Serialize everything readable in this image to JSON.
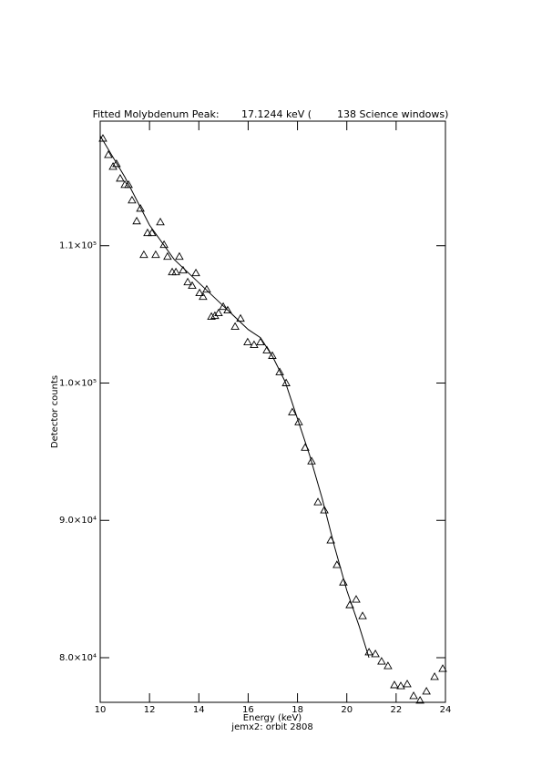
{
  "chart_data": {
    "type": "scatter",
    "title": "Fitted Molybdenum Peak:       17.1244 keV (        138 Science windows)",
    "x_label": "Energy (keV)",
    "y_label": "Detector counts",
    "subtitle": "jemx2: orbit 2808",
    "xlim": [
      10,
      24
    ],
    "xticks": [
      10,
      12,
      14,
      16,
      18,
      20,
      22,
      24
    ],
    "ylim": [
      76750,
      119070
    ],
    "yticks": [
      {
        "value": 80000,
        "label": "8.0×10⁴"
      },
      {
        "value": 90000,
        "label": "9.0×10⁴"
      },
      {
        "value": 100000,
        "label": "1.0×10⁵"
      },
      {
        "value": 110000,
        "label": "1.1×10⁵"
      }
    ],
    "color": "#000000",
    "series": [
      {
        "style": "marker",
        "x": [
          10.11,
          10.33,
          10.52,
          10.66,
          10.81,
          11.0,
          11.15,
          11.29,
          11.48,
          11.63,
          11.77,
          11.92,
          12.1,
          12.25,
          12.44,
          12.59,
          12.73,
          12.92,
          13.07,
          13.21,
          13.36,
          13.55,
          13.73,
          13.88,
          14.03,
          14.17,
          14.32,
          14.51,
          14.65,
          14.8,
          14.99,
          15.17,
          15.47,
          15.69,
          15.98,
          16.24,
          16.5,
          16.76,
          16.98,
          17.28,
          17.54,
          17.79,
          18.05,
          18.31,
          18.57,
          18.83,
          19.09,
          19.35,
          19.6,
          19.86,
          20.12,
          20.38,
          20.64,
          20.9,
          21.16,
          21.41,
          21.67,
          21.93,
          22.19,
          22.45,
          22.71,
          22.97,
          23.23,
          23.56,
          23.89
        ],
        "values": [
          117810,
          116620,
          115760,
          115960,
          114900,
          114440,
          114440,
          113310,
          111790,
          112710,
          109340,
          110930,
          110930,
          109340,
          111720,
          110070,
          109210,
          108080,
          108080,
          109210,
          108210,
          107350,
          107090,
          108010,
          106560,
          106290,
          106820,
          104840,
          104900,
          105100,
          105560,
          105300,
          104110,
          104700,
          102980,
          102780,
          102980,
          102390,
          101990,
          100800,
          100000,
          97880,
          97160,
          95300,
          94310,
          91330,
          90740,
          88550,
          86760,
          85490,
          83840,
          84240,
          83040,
          80400,
          80270,
          79730,
          79400,
          78010,
          77940,
          78080,
          77220,
          76890,
          77550,
          78610,
          79200
        ]
      },
      {
        "style": "line",
        "x": [
          10,
          11,
          12,
          13,
          14,
          15,
          16,
          16.5,
          17,
          17.5,
          18,
          18.5,
          19,
          19.5,
          20,
          20.5,
          20.9
        ],
        "values": [
          118000,
          115000,
          111500,
          109000,
          107300,
          105600,
          103900,
          103300,
          101900,
          100100,
          97400,
          94700,
          91600,
          88100,
          84900,
          82300,
          80000
        ]
      }
    ]
  }
}
